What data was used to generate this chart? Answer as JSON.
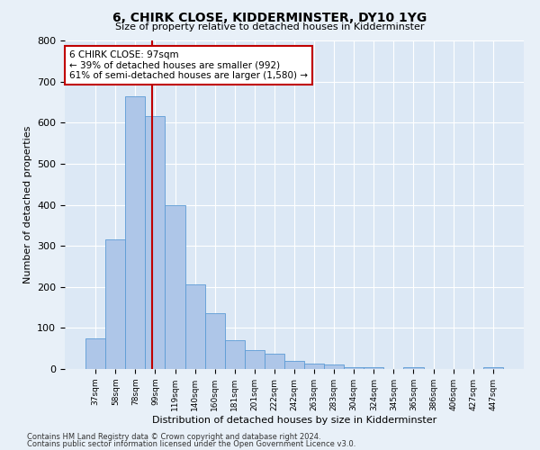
{
  "title": "6, CHIRK CLOSE, KIDDERMINSTER, DY10 1YG",
  "subtitle": "Size of property relative to detached houses in Kidderminster",
  "xlabel": "Distribution of detached houses by size in Kidderminster",
  "ylabel": "Number of detached properties",
  "categories": [
    "37sqm",
    "58sqm",
    "78sqm",
    "99sqm",
    "119sqm",
    "140sqm",
    "160sqm",
    "181sqm",
    "201sqm",
    "222sqm",
    "242sqm",
    "263sqm",
    "283sqm",
    "304sqm",
    "324sqm",
    "345sqm",
    "365sqm",
    "386sqm",
    "406sqm",
    "427sqm",
    "447sqm"
  ],
  "values": [
    75,
    315,
    665,
    615,
    400,
    205,
    135,
    70,
    47,
    37,
    20,
    14,
    10,
    5,
    5,
    0,
    4,
    0,
    0,
    0,
    5
  ],
  "bar_color": "#aec6e8",
  "bar_edge_color": "#5b9bd5",
  "property_line_x": 2.85,
  "property_line_color": "#c00000",
  "annotation_text": "6 CHIRK CLOSE: 97sqm\n← 39% of detached houses are smaller (992)\n61% of semi-detached houses are larger (1,580) →",
  "annotation_box_color": "#c00000",
  "ylim": [
    0,
    800
  ],
  "yticks": [
    0,
    100,
    200,
    300,
    400,
    500,
    600,
    700,
    800
  ],
  "footer1": "Contains HM Land Registry data © Crown copyright and database right 2024.",
  "footer2": "Contains public sector information licensed under the Open Government Licence v3.0.",
  "bg_color": "#e8f0f8",
  "plot_bg_color": "#dce8f5"
}
